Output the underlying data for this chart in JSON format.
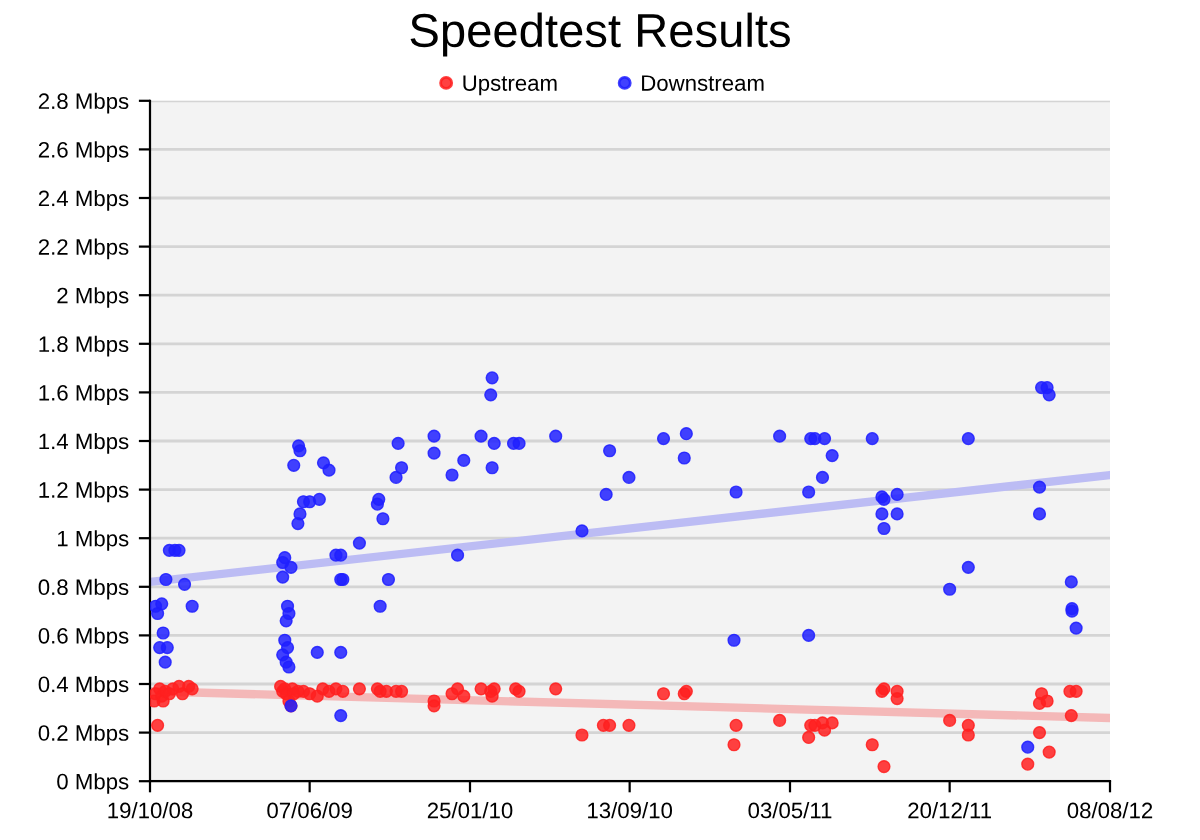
{
  "chart_data": {
    "type": "scatter",
    "title": "Speedtest Results",
    "legend": "top",
    "grid": "y",
    "xlim": [
      "2008-10-19",
      "2012-08-08"
    ],
    "xticks": [
      {
        "value": "2008-10-19",
        "label": "19/10/08"
      },
      {
        "value": "2009-06-07",
        "label": "07/06/09"
      },
      {
        "value": "2010-01-25",
        "label": "25/01/10"
      },
      {
        "value": "2010-09-13",
        "label": "13/09/10"
      },
      {
        "value": "2011-05-03",
        "label": "03/05/11"
      },
      {
        "value": "2011-12-20",
        "label": "20/12/11"
      },
      {
        "value": "2012-08-08",
        "label": "08/08/12"
      }
    ],
    "ylim": [
      0,
      2.8
    ],
    "yticks": [
      {
        "value": 0,
        "label": "0 Mbps"
      },
      {
        "value": 0.2,
        "label": "0.2 Mbps"
      },
      {
        "value": 0.4,
        "label": "0.4 Mbps"
      },
      {
        "value": 0.6,
        "label": "0.6 Mbps"
      },
      {
        "value": 0.8,
        "label": "0.8 Mbps"
      },
      {
        "value": 1,
        "label": "1 Mbps"
      },
      {
        "value": 1.2,
        "label": "1.2 Mbps"
      },
      {
        "value": 1.4,
        "label": "1.4 Mbps"
      },
      {
        "value": 1.6,
        "label": "1.6 Mbps"
      },
      {
        "value": 1.8,
        "label": "1.8 Mbps"
      },
      {
        "value": 2,
        "label": "2 Mbps"
      },
      {
        "value": 2.2,
        "label": "2.2 Mbps"
      },
      {
        "value": 2.4,
        "label": "2.4 Mbps"
      },
      {
        "value": 2.6,
        "label": "2.6 Mbps"
      },
      {
        "value": 2.8,
        "label": "2.8 Mbps"
      }
    ],
    "series": [
      {
        "type": "line",
        "color": "#f4b8b8",
        "x": [
          "2008-10-19",
          "2012-08-08"
        ],
        "values": [
          0.37,
          0.26
        ]
      },
      {
        "type": "line",
        "color": "#bcbcf4",
        "x": [
          "2008-10-19",
          "2012-08-08"
        ],
        "values": [
          0.82,
          1.26
        ]
      },
      {
        "name": "Upstream",
        "color": "#ff2020",
        "marker": "circle",
        "x": [
          "2008-10-25",
          "2008-10-27",
          "2008-10-30",
          "2008-11-02",
          "2008-11-05",
          "2008-11-07",
          "2008-11-10",
          "2008-11-16",
          "2008-11-21",
          "2008-11-30",
          "2008-12-05",
          "2008-12-14",
          "2008-12-19",
          "2009-04-26",
          "2009-04-29",
          "2009-05-02",
          "2009-05-04",
          "2009-05-08",
          "2009-05-11",
          "2009-05-13",
          "2009-05-15",
          "2009-05-21",
          "2009-05-29",
          "2009-06-07",
          "2009-06-18",
          "2009-06-26",
          "2009-07-05",
          "2009-07-15",
          "2009-07-25",
          "2009-08-18",
          "2009-09-13",
          "2009-09-17",
          "2009-09-26",
          "2009-10-10",
          "2009-10-18",
          "2009-12-04",
          "2009-12-04",
          "2009-12-30",
          "2010-01-07",
          "2010-01-16",
          "2010-02-10",
          "2010-02-24",
          "2010-02-26",
          "2010-03-01",
          "2010-04-01",
          "2010-04-06",
          "2010-05-29",
          "2010-07-06",
          "2010-08-06",
          "2010-08-15",
          "2010-09-12",
          "2010-11-01",
          "2010-12-01",
          "2010-12-04",
          "2011-02-11",
          "2011-02-14",
          "2011-04-18",
          "2011-05-30",
          "2011-06-02",
          "2011-06-08",
          "2011-06-19",
          "2011-06-22",
          "2011-07-03",
          "2011-08-30",
          "2011-09-13",
          "2011-09-16",
          "2011-09-16",
          "2011-10-05",
          "2011-10-05",
          "2011-12-20",
          "2012-01-16",
          "2012-01-16",
          "2012-04-11",
          "2012-04-28",
          "2012-04-28",
          "2012-05-01",
          "2012-05-09",
          "2012-05-12",
          "2012-06-11",
          "2012-06-13",
          "2012-06-20"
        ],
        "values": [
          0.33,
          0.36,
          0.23,
          0.38,
          0.35,
          0.33,
          0.37,
          0.36,
          0.38,
          0.39,
          0.36,
          0.39,
          0.38,
          0.39,
          0.37,
          0.38,
          0.36,
          0.33,
          0.31,
          0.38,
          0.36,
          0.37,
          0.37,
          0.36,
          0.35,
          0.38,
          0.37,
          0.38,
          0.37,
          0.38,
          0.38,
          0.37,
          0.37,
          0.37,
          0.37,
          0.33,
          0.31,
          0.36,
          0.38,
          0.35,
          0.38,
          0.37,
          0.35,
          0.38,
          0.38,
          0.37,
          0.38,
          0.19,
          0.23,
          0.23,
          0.23,
          0.36,
          0.36,
          0.37,
          0.15,
          0.23,
          0.25,
          0.18,
          0.23,
          0.23,
          0.24,
          0.21,
          0.24,
          0.15,
          0.37,
          0.38,
          0.06,
          0.37,
          0.34,
          0.25,
          0.23,
          0.19,
          0.07,
          0.2,
          0.32,
          0.36,
          0.33,
          0.12,
          0.37,
          0.27,
          0.37
        ]
      },
      {
        "name": "Downstream",
        "color": "#2020ff",
        "marker": "circle",
        "x": [
          "2008-10-27",
          "2008-10-30",
          "2008-11-02",
          "2008-11-05",
          "2008-11-07",
          "2008-11-10",
          "2008-11-11",
          "2008-11-13",
          "2008-11-16",
          "2008-11-24",
          "2008-11-30",
          "2008-12-08",
          "2008-12-19",
          "2009-04-29",
          "2009-04-29",
          "2009-04-29",
          "2009-05-02",
          "2009-05-02",
          "2009-05-04",
          "2009-05-04",
          "2009-05-06",
          "2009-05-06",
          "2009-05-08",
          "2009-05-08",
          "2009-05-11",
          "2009-05-11",
          "2009-05-15",
          "2009-05-21",
          "2009-05-22",
          "2009-05-24",
          "2009-05-24",
          "2009-05-29",
          "2009-06-07",
          "2009-06-18",
          "2009-06-21",
          "2009-06-27",
          "2009-07-05",
          "2009-07-15",
          "2009-07-22",
          "2009-07-22",
          "2009-07-22",
          "2009-07-22",
          "2009-07-25",
          "2009-08-18",
          "2009-09-13",
          "2009-09-15",
          "2009-09-17",
          "2009-09-21",
          "2009-09-29",
          "2009-10-10",
          "2009-10-13",
          "2009-10-18",
          "2009-12-04",
          "2009-12-04",
          "2009-12-30",
          "2010-01-07",
          "2010-01-16",
          "2010-02-10",
          "2010-02-24",
          "2010-02-26",
          "2010-02-26",
          "2010-03-01",
          "2010-03-29",
          "2010-04-06",
          "2010-05-29",
          "2010-07-06",
          "2010-08-10",
          "2010-08-15",
          "2010-09-12",
          "2010-11-01",
          "2010-12-01",
          "2010-12-04",
          "2011-02-11",
          "2011-02-14",
          "2011-04-18",
          "2011-05-30",
          "2011-05-30",
          "2011-06-02",
          "2011-06-08",
          "2011-06-19",
          "2011-06-22",
          "2011-07-03",
          "2011-08-30",
          "2011-09-13",
          "2011-09-13",
          "2011-09-16",
          "2011-09-16",
          "2011-10-05",
          "2011-10-05",
          "2011-12-20",
          "2012-01-16",
          "2012-01-16",
          "2012-04-11",
          "2012-04-28",
          "2012-04-28",
          "2012-05-01",
          "2012-05-09",
          "2012-05-12",
          "2012-06-13",
          "2012-06-14",
          "2012-06-14",
          "2012-06-20"
        ],
        "values": [
          0.72,
          0.69,
          0.55,
          0.73,
          0.61,
          0.49,
          0.83,
          0.55,
          0.95,
          0.95,
          0.95,
          0.81,
          0.72,
          0.9,
          0.84,
          0.52,
          0.92,
          0.58,
          0.66,
          0.49,
          0.72,
          0.55,
          0.69,
          0.47,
          0.88,
          0.31,
          1.3,
          1.06,
          1.38,
          1.36,
          1.1,
          1.15,
          1.15,
          0.53,
          1.16,
          1.31,
          1.28,
          0.93,
          0.93,
          0.83,
          0.53,
          0.27,
          0.83,
          0.98,
          1.14,
          1.16,
          0.72,
          1.08,
          0.83,
          1.25,
          1.39,
          1.29,
          1.42,
          1.35,
          1.26,
          0.93,
          1.32,
          1.42,
          1.59,
          1.66,
          1.29,
          1.39,
          1.39,
          1.39,
          1.42,
          1.03,
          1.18,
          1.36,
          1.25,
          1.41,
          1.33,
          1.43,
          0.58,
          1.19,
          1.42,
          1.19,
          0.6,
          1.41,
          1.41,
          1.25,
          1.41,
          1.34,
          1.41,
          1.17,
          1.1,
          1.16,
          1.04,
          1.18,
          1.1,
          0.79,
          1.41,
          0.88,
          0.14,
          1.21,
          1.1,
          1.62,
          1.62,
          1.59,
          0.82,
          0.71,
          0.7,
          0.63
        ]
      }
    ]
  }
}
